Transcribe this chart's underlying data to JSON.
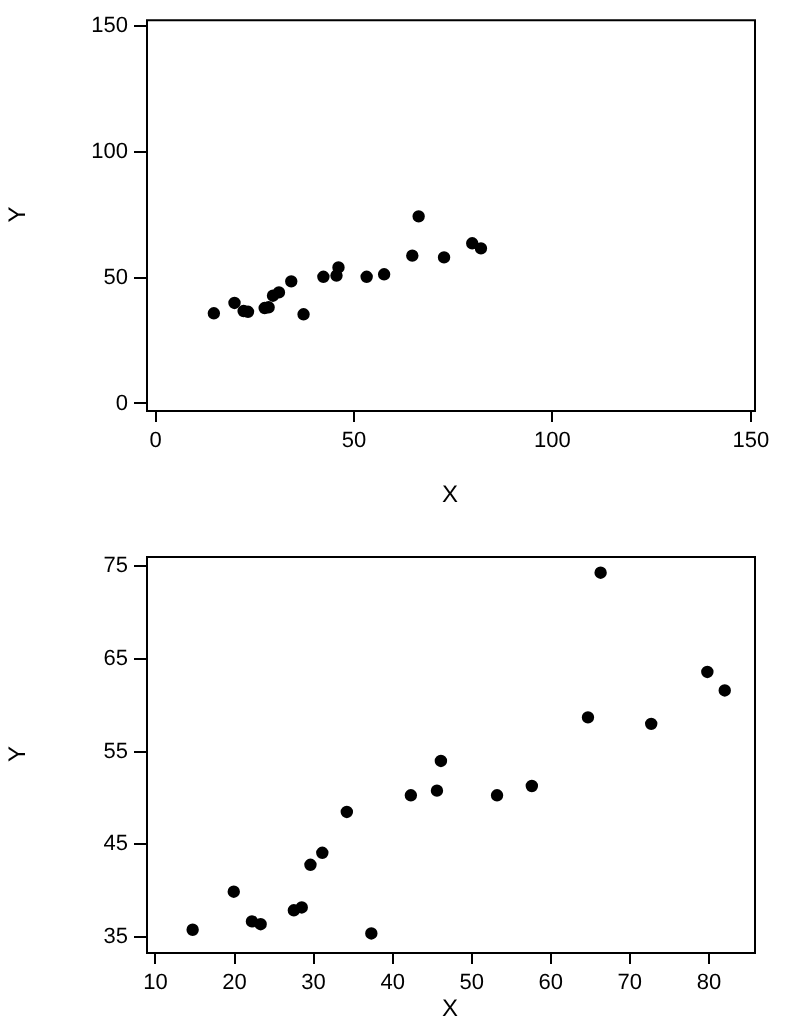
{
  "chart_data": [
    {
      "type": "scatter",
      "xlabel": "X",
      "ylabel": "Y",
      "marker": "circle",
      "grid": false,
      "xlim": [
        -2.4,
        150.8
      ],
      "xticks": [
        0,
        50,
        100,
        150
      ],
      "ylim": [
        -2.6,
        152.6
      ],
      "yticks": [
        0,
        50,
        100,
        150
      ],
      "series": [
        {
          "color": "#000000",
          "x": [
            14.7,
            19.9,
            22.2,
            23.3,
            27.5,
            28.5,
            29.6,
            31.1,
            34.2,
            37.3,
            42.3,
            45.6,
            46.1,
            53.2,
            57.6,
            64.7,
            66.3,
            72.7,
            79.8,
            82.0
          ],
          "values": [
            35.8,
            39.9,
            36.7,
            36.4,
            37.9,
            38.2,
            42.8,
            44.1,
            48.5,
            35.4,
            50.3,
            50.8,
            54.0,
            50.3,
            51.3,
            58.7,
            74.3,
            58.0,
            63.6,
            61.6
          ]
        }
      ]
    },
    {
      "type": "scatter",
      "xlabel": "X",
      "ylabel": "Y",
      "marker": "circle",
      "grid": false,
      "xlim": [
        8.8,
        85.7
      ],
      "xticks": [
        10,
        20,
        30,
        40,
        50,
        60,
        70,
        80
      ],
      "ylim": [
        33.4,
        76.1
      ],
      "yticks": [
        35,
        45,
        55,
        65,
        75
      ],
      "series": [
        {
          "color": "#000000",
          "x": [
            14.7,
            19.9,
            22.2,
            23.3,
            27.5,
            28.5,
            29.6,
            31.1,
            34.2,
            37.3,
            42.3,
            45.6,
            46.1,
            53.2,
            57.6,
            64.7,
            66.3,
            72.7,
            79.8,
            82.0
          ],
          "values": [
            35.8,
            39.9,
            36.7,
            36.4,
            37.9,
            38.2,
            42.8,
            44.1,
            48.5,
            35.4,
            50.3,
            50.8,
            54.0,
            50.3,
            51.3,
            58.7,
            74.3,
            58.0,
            63.6,
            61.6
          ]
        }
      ]
    }
  ]
}
